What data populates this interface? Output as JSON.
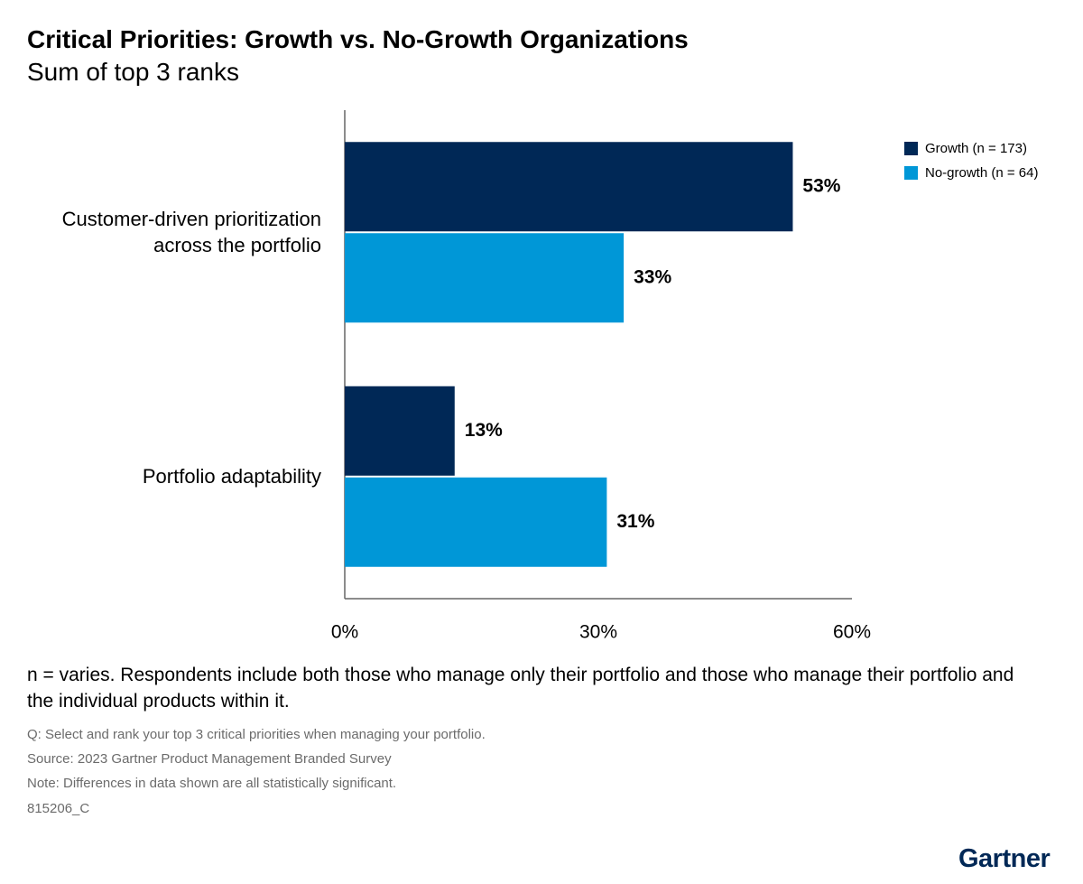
{
  "chart_data": {
    "type": "bar",
    "orientation": "horizontal",
    "title": "Critical Priorities: Growth vs. No-Growth Organizations",
    "subtitle": "Sum of top 3 ranks",
    "categories": [
      "Customer-driven prioritization across the portfolio",
      "Portfolio adaptability"
    ],
    "series": [
      {
        "name": "Growth (n = 173)",
        "color": "#002856",
        "values": [
          53,
          13
        ],
        "value_labels": [
          "53%",
          "13%"
        ]
      },
      {
        "name": "No-growth (n = 64)",
        "color": "#0097d7",
        "values": [
          33,
          31
        ],
        "value_labels": [
          "33%",
          "31%"
        ]
      }
    ],
    "xlim": [
      0,
      60
    ],
    "xticks": [
      {
        "value": 0,
        "label": "0%"
      },
      {
        "value": 30,
        "label": "30%"
      },
      {
        "value": 60,
        "label": "60%"
      }
    ],
    "grid": false,
    "legend": "top-right"
  },
  "footnotes": {
    "sample": "n = varies. Respondents include both those who manage only their portfolio and those who manage their portfolio and the individual products within it.",
    "question": "Q: Select and rank your top 3 critical priorities when managing your portfolio.",
    "source": "Source: 2023 Gartner Product Management Branded Survey",
    "note": "Note: Differences in data shown are all statistically significant.",
    "id": "815206_C"
  },
  "logo": "Gartner"
}
